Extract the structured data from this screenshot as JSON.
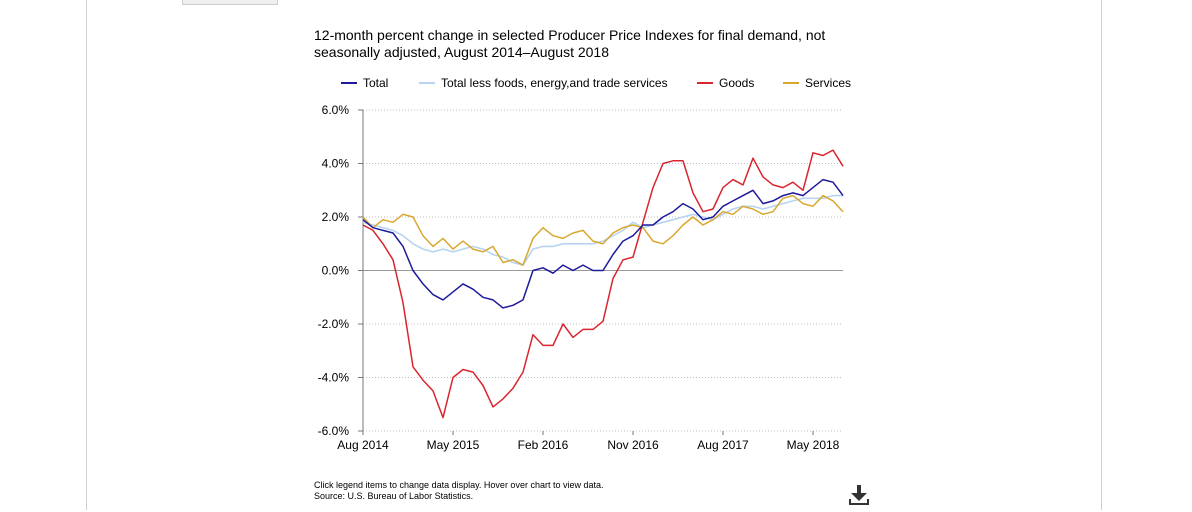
{
  "colors": {
    "total": "#1d1a9b",
    "core": "#b8d4f0",
    "goods": "#d9252f",
    "services": "#d8a72e",
    "grid": "#bfbfbf",
    "axis": "#777777"
  },
  "footer": {
    "note": "Click legend items to change data display. Hover over chart to view data.",
    "source": "Source: U.S. Bureau of Labor Statistics."
  },
  "icons": {
    "download": "download-icon"
  },
  "chart_data": {
    "type": "line",
    "title": "12-month percent change in selected Producer Price Indexes for final demand, not seasonally adjusted, August 2014–August 2018",
    "xlabel": "",
    "ylabel": "",
    "ylim": [
      -6,
      6
    ],
    "y_ticks": [
      "6.0%",
      "4.0%",
      "2.0%",
      "0.0%",
      "-2.0%",
      "-4.0%",
      "-6.0%"
    ],
    "y_tick_values": [
      6,
      4,
      2,
      0,
      -2,
      -4,
      -6
    ],
    "x": [
      "Aug 2014",
      "Sep 2014",
      "Oct 2014",
      "Nov 2014",
      "Dec 2014",
      "Jan 2015",
      "Feb 2015",
      "Mar 2015",
      "Apr 2015",
      "May 2015",
      "Jun 2015",
      "Jul 2015",
      "Aug 2015",
      "Sep 2015",
      "Oct 2015",
      "Nov 2015",
      "Dec 2015",
      "Jan 2016",
      "Feb 2016",
      "Mar 2016",
      "Apr 2016",
      "May 2016",
      "Jun 2016",
      "Jul 2016",
      "Aug 2016",
      "Sep 2016",
      "Oct 2016",
      "Nov 2016",
      "Dec 2016",
      "Jan 2017",
      "Feb 2017",
      "Mar 2017",
      "Apr 2017",
      "May 2017",
      "Jun 2017",
      "Jul 2017",
      "Aug 2017",
      "Sep 2017",
      "Oct 2017",
      "Nov 2017",
      "Dec 2017",
      "Jan 2018",
      "Feb 2018",
      "Mar 2018",
      "Apr 2018",
      "May 2018",
      "Jun 2018",
      "Jul 2018",
      "Aug 2018"
    ],
    "x_tick_labels": [
      "Aug 2014",
      "May 2015",
      "Feb 2016",
      "Nov 2016",
      "Aug 2017",
      "May 2018"
    ],
    "x_tick_values": [
      "Aug 2014",
      "May 2015",
      "Feb 2016",
      "Nov 2016",
      "Aug 2017",
      "May 2018"
    ],
    "grid": "horizontal dotted",
    "legend_position": "top",
    "series": [
      {
        "name": "Total",
        "key": "total",
        "values": [
          1.9,
          1.6,
          1.5,
          1.4,
          0.9,
          0.0,
          -0.5,
          -0.9,
          -1.1,
          -0.8,
          -0.5,
          -0.7,
          -1.0,
          -1.1,
          -1.4,
          -1.3,
          -1.1,
          0.0,
          0.1,
          -0.1,
          0.2,
          0.0,
          0.2,
          0.0,
          0.0,
          0.6,
          1.1,
          1.3,
          1.7,
          1.7,
          2.0,
          2.2,
          2.5,
          2.3,
          1.9,
          2.0,
          2.4,
          2.6,
          2.8,
          3.0,
          2.5,
          2.6,
          2.8,
          2.9,
          2.8,
          3.1,
          3.4,
          3.3,
          2.8
        ]
      },
      {
        "name": "Total less foods, energy,and trade services",
        "key": "core",
        "values": [
          1.8,
          1.7,
          1.6,
          1.5,
          1.3,
          1.0,
          0.8,
          0.7,
          0.8,
          0.7,
          0.8,
          0.9,
          0.8,
          0.6,
          0.5,
          0.3,
          0.2,
          0.8,
          0.9,
          0.9,
          1.0,
          1.0,
          1.0,
          1.0,
          1.1,
          1.3,
          1.5,
          1.8,
          1.6,
          1.7,
          1.8,
          1.9,
          2.0,
          2.1,
          2.0,
          1.9,
          2.1,
          2.3,
          2.4,
          2.4,
          2.3,
          2.4,
          2.5,
          2.6,
          2.7,
          2.7,
          2.7,
          2.8,
          2.8
        ]
      },
      {
        "name": "Goods",
        "key": "goods",
        "values": [
          1.7,
          1.5,
          1.0,
          0.4,
          -1.2,
          -3.6,
          -4.1,
          -4.5,
          -5.5,
          -4.0,
          -3.7,
          -3.8,
          -4.3,
          -5.1,
          -4.8,
          -4.4,
          -3.8,
          -2.4,
          -2.8,
          -2.8,
          -2.0,
          -2.5,
          -2.2,
          -2.2,
          -1.9,
          -0.3,
          0.4,
          0.5,
          1.8,
          3.1,
          4.0,
          4.1,
          4.1,
          2.9,
          2.2,
          2.3,
          3.1,
          3.4,
          3.2,
          4.2,
          3.5,
          3.2,
          3.1,
          3.3,
          3.0,
          4.4,
          4.3,
          4.5,
          3.9
        ]
      },
      {
        "name": "Services",
        "key": "services",
        "values": [
          2.0,
          1.6,
          1.9,
          1.8,
          2.1,
          2.0,
          1.3,
          0.9,
          1.2,
          0.8,
          1.1,
          0.8,
          0.7,
          0.9,
          0.3,
          0.4,
          0.2,
          1.2,
          1.6,
          1.3,
          1.2,
          1.4,
          1.5,
          1.1,
          1.0,
          1.4,
          1.6,
          1.7,
          1.6,
          1.1,
          1.0,
          1.3,
          1.7,
          2.0,
          1.7,
          1.9,
          2.2,
          2.1,
          2.4,
          2.3,
          2.1,
          2.2,
          2.7,
          2.8,
          2.5,
          2.4,
          2.8,
          2.6,
          2.2
        ]
      }
    ]
  }
}
